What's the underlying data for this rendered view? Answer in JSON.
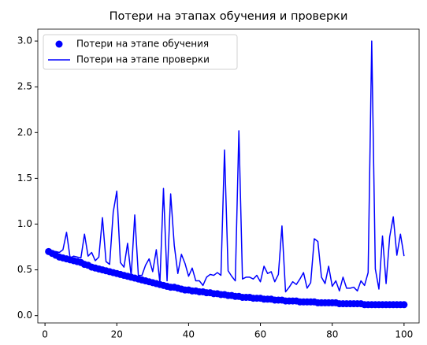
{
  "chart_data": {
    "type": "line",
    "title": "Потери на этапах обучения и проверки",
    "x": [
      1,
      2,
      3,
      4,
      5,
      6,
      7,
      8,
      9,
      10,
      11,
      12,
      13,
      14,
      15,
      16,
      17,
      18,
      19,
      20,
      21,
      22,
      23,
      24,
      25,
      26,
      27,
      28,
      29,
      30,
      31,
      32,
      33,
      34,
      35,
      36,
      37,
      38,
      39,
      40,
      41,
      42,
      43,
      44,
      45,
      46,
      47,
      48,
      49,
      50,
      51,
      52,
      53,
      54,
      55,
      56,
      57,
      58,
      59,
      60,
      61,
      62,
      63,
      64,
      65,
      66,
      67,
      68,
      69,
      70,
      71,
      72,
      73,
      74,
      75,
      76,
      77,
      78,
      79,
      80,
      81,
      82,
      83,
      84,
      85,
      86,
      87,
      88,
      89,
      90,
      91,
      92,
      93,
      94,
      95,
      96,
      97,
      98,
      99,
      100
    ],
    "series": [
      {
        "name": "Потери на этапе обучения",
        "type": "scatter",
        "color": "#0000ff",
        "values": [
          0.7,
          0.68,
          0.66,
          0.64,
          0.63,
          0.62,
          0.61,
          0.6,
          0.59,
          0.58,
          0.56,
          0.55,
          0.53,
          0.52,
          0.51,
          0.5,
          0.49,
          0.48,
          0.47,
          0.46,
          0.45,
          0.44,
          0.43,
          0.42,
          0.41,
          0.4,
          0.39,
          0.38,
          0.37,
          0.36,
          0.35,
          0.34,
          0.33,
          0.32,
          0.31,
          0.31,
          0.3,
          0.29,
          0.28,
          0.28,
          0.27,
          0.27,
          0.26,
          0.26,
          0.25,
          0.25,
          0.24,
          0.24,
          0.23,
          0.23,
          0.22,
          0.22,
          0.21,
          0.21,
          0.2,
          0.2,
          0.2,
          0.19,
          0.19,
          0.19,
          0.18,
          0.18,
          0.18,
          0.17,
          0.17,
          0.17,
          0.16,
          0.16,
          0.16,
          0.16,
          0.15,
          0.15,
          0.15,
          0.15,
          0.15,
          0.14,
          0.14,
          0.14,
          0.14,
          0.14,
          0.14,
          0.13,
          0.13,
          0.13,
          0.13,
          0.13,
          0.13,
          0.13,
          0.12,
          0.12,
          0.12,
          0.12,
          0.12,
          0.12,
          0.12,
          0.12,
          0.12,
          0.12,
          0.12,
          0.12
        ]
      },
      {
        "name": "Потери на этапе проверки",
        "type": "line",
        "color": "#0000ff",
        "values": [
          0.7,
          0.7,
          0.7,
          0.69,
          0.72,
          0.91,
          0.63,
          0.65,
          0.64,
          0.63,
          0.89,
          0.65,
          0.69,
          0.6,
          0.64,
          1.07,
          0.59,
          0.56,
          1.13,
          1.36,
          0.58,
          0.53,
          0.79,
          0.43,
          1.1,
          0.44,
          0.44,
          0.55,
          0.62,
          0.48,
          0.72,
          0.36,
          1.39,
          0.38,
          1.33,
          0.77,
          0.46,
          0.67,
          0.57,
          0.43,
          0.52,
          0.38,
          0.38,
          0.33,
          0.42,
          0.45,
          0.44,
          0.47,
          0.44,
          1.81,
          0.49,
          0.43,
          0.38,
          2.02,
          0.4,
          0.42,
          0.42,
          0.4,
          0.44,
          0.37,
          0.54,
          0.46,
          0.48,
          0.37,
          0.45,
          0.98,
          0.26,
          0.31,
          0.37,
          0.34,
          0.4,
          0.47,
          0.3,
          0.36,
          0.84,
          0.81,
          0.42,
          0.35,
          0.54,
          0.32,
          0.38,
          0.27,
          0.42,
          0.3,
          0.3,
          0.31,
          0.27,
          0.38,
          0.33,
          0.47,
          3.0,
          0.51,
          0.29,
          0.87,
          0.35,
          0.86,
          1.08,
          0.66,
          0.89,
          0.65
        ]
      }
    ],
    "xlim": [
      -2,
      104.2
    ],
    "ylim": [
      -0.08,
      3.13
    ],
    "xticks": [
      0,
      20,
      40,
      60,
      80,
      100
    ],
    "yticks": [
      {
        "value": 0,
        "label": "0.0"
      },
      {
        "value": 0.5,
        "label": "0.5"
      },
      {
        "value": 1,
        "label": "1.0"
      },
      {
        "value": 1.5,
        "label": "1.5"
      },
      {
        "value": 2,
        "label": "2.0"
      },
      {
        "value": 2.5,
        "label": "2.5"
      },
      {
        "value": 3,
        "label": "3.0"
      }
    ],
    "legend": "upper left"
  }
}
